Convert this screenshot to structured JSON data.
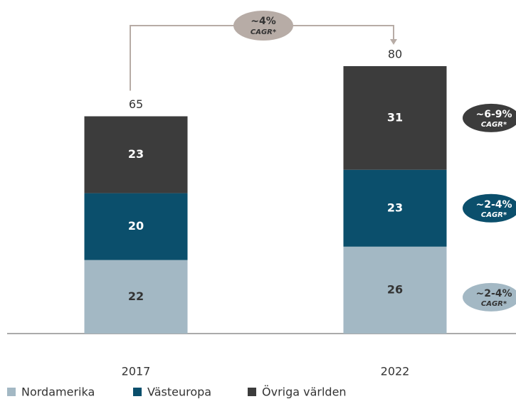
{
  "chart_data": {
    "type": "stacked_bar",
    "categories": [
      "2017",
      "2022"
    ],
    "series": [
      {
        "name": "Nordamerika",
        "color": "#a3b8c4",
        "values": [
          22,
          26
        ],
        "growth": "~2-4%",
        "growth_note": "CAGR*"
      },
      {
        "name": "Västeuropa",
        "color": "#0b4f6c",
        "values": [
          20,
          23
        ],
        "growth": "~2-4%",
        "growth_note": "CAGR*"
      },
      {
        "name": "Övriga världen",
        "color": "#3c3c3c",
        "values": [
          23,
          31
        ],
        "growth": "~6-9%",
        "growth_note": "CAGR*"
      }
    ],
    "totals": [
      65,
      80
    ],
    "total_growth": {
      "label": "~4%",
      "note": "CAGR*",
      "color": "#b7aca6"
    }
  }
}
